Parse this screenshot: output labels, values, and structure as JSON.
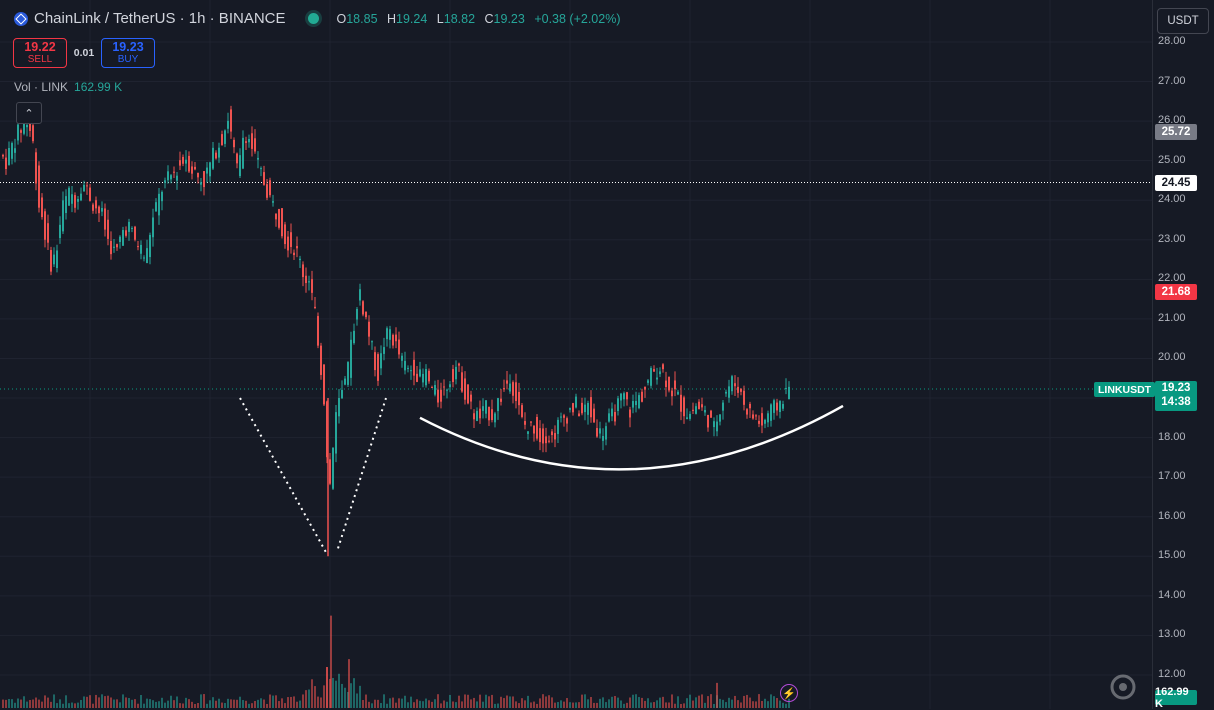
{
  "header": {
    "title": "ChainLink / TetherUS · 1h · BINANCE",
    "ohlc": [
      {
        "k": "O",
        "v": "18.85"
      },
      {
        "k": "H",
        "v": "19.24"
      },
      {
        "k": "L",
        "v": "18.82"
      },
      {
        "k": "C",
        "v": "19.23"
      }
    ],
    "change": "+0.38 (+2.02%)"
  },
  "trade": {
    "sell_price": "19.22",
    "sell_label": "SELL",
    "spread": "0.01",
    "buy_price": "19.23",
    "buy_label": "BUY"
  },
  "volume": {
    "label": "Vol · LINK",
    "value": "162.99 K"
  },
  "price_scale": {
    "currency": "USDT",
    "ticks": [
      "28.00",
      "27.00",
      "26.00",
      "25.00",
      "24.00",
      "23.00",
      "22.00",
      "21.00",
      "20.00",
      "19.00",
      "18.00",
      "17.00",
      "16.00",
      "15.00",
      "14.00",
      "13.00",
      "12.00"
    ],
    "labels": {
      "high": "25.72",
      "hline": "24.45",
      "red": "21.68",
      "current_price": "19.23",
      "countdown": "14:38",
      "volume": "162.99 K"
    }
  },
  "symbol_tag": "LINKUSDT",
  "icons": {
    "flash": "lightning-icon",
    "collapse": "chevron-up-icon",
    "logo": "chainlink-logo-icon",
    "watermark": "watermark-logo-icon"
  },
  "colors": {
    "up": "#26a69a",
    "down": "#ef5350",
    "background": "#161a25",
    "hline": "#ffffff",
    "current": "#089981"
  },
  "chart_data": {
    "type": "candlestick",
    "symbol": "LINKUSDT",
    "interval": "1h",
    "ylim": [
      11.5,
      28.5
    ],
    "path": [
      [
        0,
        25.2
      ],
      [
        8,
        25.0
      ],
      [
        18,
        25.6
      ],
      [
        25,
        25.9
      ],
      [
        30,
        26.0
      ],
      [
        36,
        25.3
      ],
      [
        40,
        24.0
      ],
      [
        45,
        23.5
      ],
      [
        52,
        22.4
      ],
      [
        58,
        22.6
      ],
      [
        64,
        23.8
      ],
      [
        72,
        24.2
      ],
      [
        78,
        24.0
      ],
      [
        84,
        24.5
      ],
      [
        90,
        24.2
      ],
      [
        96,
        23.9
      ],
      [
        104,
        23.6
      ],
      [
        110,
        23.0
      ],
      [
        118,
        22.6
      ],
      [
        124,
        23.2
      ],
      [
        130,
        23.4
      ],
      [
        136,
        23.0
      ],
      [
        142,
        22.8
      ],
      [
        148,
        22.5
      ],
      [
        152,
        23.2
      ],
      [
        158,
        23.8
      ],
      [
        164,
        24.3
      ],
      [
        170,
        24.5
      ],
      [
        176,
        24.7
      ],
      [
        182,
        24.9
      ],
      [
        188,
        25.1
      ],
      [
        194,
        24.8
      ],
      [
        200,
        24.6
      ],
      [
        206,
        24.5
      ],
      [
        212,
        24.9
      ],
      [
        218,
        25.3
      ],
      [
        224,
        25.6
      ],
      [
        230,
        26.1
      ],
      [
        236,
        25.2
      ],
      [
        240,
        24.6
      ],
      [
        246,
        25.8
      ],
      [
        252,
        25.5
      ],
      [
        258,
        25.0
      ],
      [
        264,
        24.6
      ],
      [
        270,
        24.2
      ],
      [
        276,
        23.8
      ],
      [
        282,
        23.5
      ],
      [
        288,
        23.0
      ],
      [
        294,
        22.9
      ],
      [
        300,
        22.6
      ],
      [
        306,
        22.1
      ],
      [
        312,
        21.8
      ],
      [
        318,
        21.0
      ],
      [
        322,
        20.0
      ],
      [
        326,
        19.0
      ],
      [
        328,
        18.0
      ],
      [
        331,
        16.5
      ],
      [
        334,
        17.5
      ],
      [
        338,
        18.5
      ],
      [
        342,
        19.0
      ],
      [
        348,
        19.3
      ],
      [
        354,
        20.5
      ],
      [
        360,
        21.7
      ],
      [
        364,
        21.4
      ],
      [
        368,
        21.0
      ],
      [
        374,
        20.2
      ],
      [
        380,
        19.6
      ],
      [
        386,
        20.4
      ],
      [
        392,
        20.7
      ],
      [
        398,
        20.3
      ],
      [
        404,
        19.9
      ],
      [
        410,
        19.7
      ],
      [
        416,
        19.8
      ],
      [
        422,
        19.5
      ],
      [
        428,
        19.6
      ],
      [
        434,
        19.2
      ],
      [
        440,
        19.0
      ],
      [
        446,
        19.2
      ],
      [
        452,
        19.5
      ],
      [
        458,
        19.8
      ],
      [
        464,
        19.4
      ],
      [
        470,
        18.9
      ],
      [
        476,
        18.6
      ],
      [
        482,
        18.5
      ],
      [
        488,
        18.7
      ],
      [
        494,
        18.6
      ],
      [
        500,
        18.9
      ],
      [
        506,
        19.2
      ],
      [
        512,
        19.6
      ],
      [
        518,
        19.0
      ],
      [
        524,
        18.4
      ],
      [
        530,
        18.2
      ],
      [
        536,
        18.3
      ],
      [
        542,
        18.0
      ],
      [
        548,
        18.1
      ],
      [
        554,
        18.0
      ],
      [
        560,
        18.3
      ],
      [
        566,
        18.5
      ],
      [
        572,
        18.7
      ],
      [
        578,
        18.8
      ],
      [
        584,
        18.6
      ],
      [
        590,
        18.8
      ],
      [
        596,
        18.4
      ],
      [
        602,
        18.1
      ],
      [
        608,
        18.3
      ],
      [
        614,
        18.5
      ],
      [
        620,
        18.8
      ],
      [
        626,
        19.0
      ],
      [
        632,
        18.7
      ],
      [
        638,
        18.9
      ],
      [
        644,
        19.1
      ],
      [
        650,
        19.4
      ],
      [
        656,
        19.7
      ],
      [
        662,
        19.8
      ],
      [
        668,
        19.5
      ],
      [
        674,
        19.2
      ],
      [
        680,
        19.0
      ],
      [
        686,
        18.7
      ],
      [
        692,
        18.6
      ],
      [
        698,
        18.8
      ],
      [
        704,
        18.7
      ],
      [
        710,
        18.5
      ],
      [
        716,
        18.2
      ],
      [
        722,
        18.8
      ],
      [
        728,
        19.2
      ],
      [
        734,
        19.4
      ],
      [
        740,
        19.3
      ],
      [
        746,
        18.9
      ],
      [
        752,
        18.6
      ],
      [
        758,
        18.5
      ],
      [
        764,
        18.3
      ],
      [
        770,
        18.6
      ],
      [
        776,
        18.7
      ],
      [
        782,
        18.9
      ],
      [
        790,
        19.23
      ]
    ],
    "annotations": [
      {
        "type": "dotted-v",
        "points": [
          [
            240,
            19.0
          ],
          [
            326,
            15.1
          ],
          [
            338,
            15.2
          ],
          [
            386,
            19.0
          ]
        ]
      },
      {
        "type": "arc",
        "from": [
          420,
          18.5
        ],
        "mid": [
          630,
          17.2
        ],
        "to": [
          843,
          18.8
        ]
      }
    ],
    "hlines": [
      24.45,
      19.23
    ],
    "volume_spikes": [
      [
        326,
        12.2
      ],
      [
        330,
        13.5
      ],
      [
        348,
        12.4
      ],
      [
        716,
        11.8
      ]
    ]
  }
}
